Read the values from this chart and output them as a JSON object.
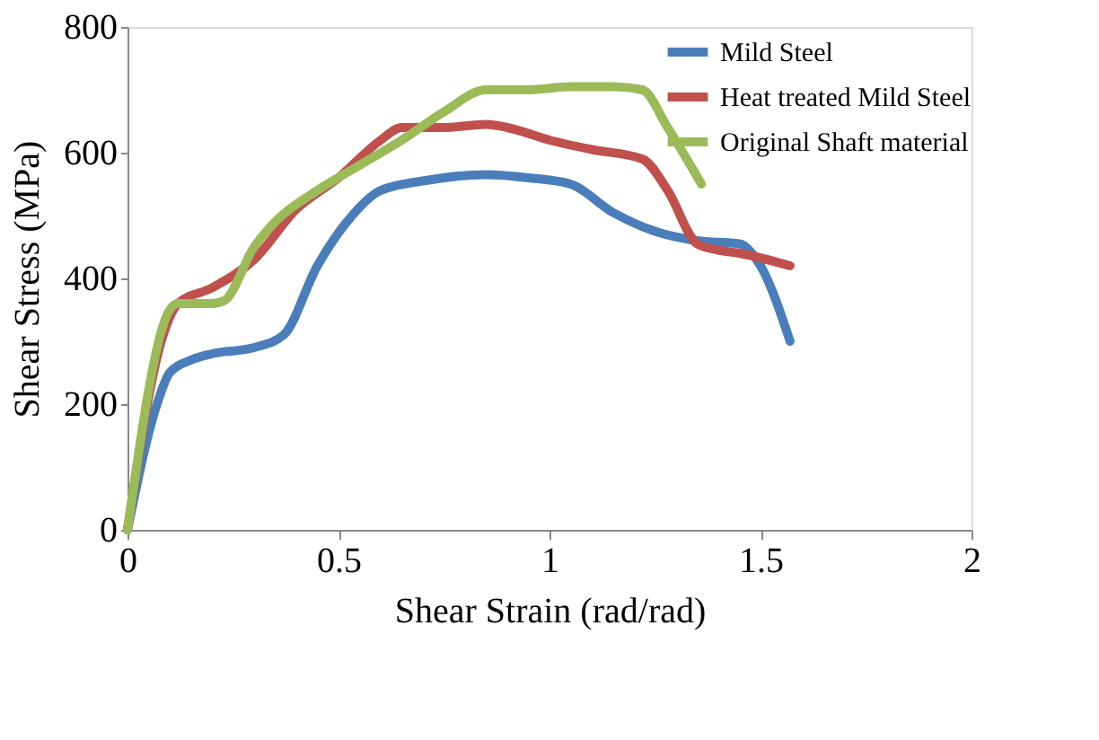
{
  "chart_data": {
    "type": "line",
    "xlabel": "Shear Strain (rad/rad)",
    "ylabel": "Shear Stress (MPa)",
    "xlim": [
      0,
      2
    ],
    "xticks": [
      0,
      {
        "value": 0.5,
        "label": "0.5"
      },
      1,
      {
        "value": 1.5,
        "label": "1.5"
      },
      2
    ],
    "ylim": [
      0,
      800
    ],
    "yticks": [
      0,
      200,
      400,
      600,
      800
    ],
    "grid": false,
    "legend": "top right",
    "marker": "none",
    "line_style": "solid",
    "series": [
      {
        "name": "Mild Steel",
        "color": "#4a7ebb",
        "x": [
          0,
          0.07,
          0.1,
          0.15,
          0.2,
          0.3,
          0.37,
          0.45,
          0.52,
          0.6,
          0.7,
          0.85,
          0.95,
          1.05,
          1.15,
          1.25,
          1.35,
          1.45,
          1.5,
          1.57
        ],
        "values": [
          0,
          200,
          250,
          270,
          280,
          290,
          310,
          420,
          490,
          540,
          555,
          565,
          560,
          550,
          505,
          475,
          460,
          455,
          420,
          300
        ]
      },
      {
        "name": "Heat treated Mild Steel",
        "color": "#c0504d",
        "x": [
          0,
          0.08,
          0.12,
          0.2,
          0.3,
          0.4,
          0.5,
          0.6,
          0.65,
          0.75,
          0.85,
          0.9,
          1.0,
          1.1,
          1.22,
          1.28,
          1.35,
          1.4,
          1.45,
          1.57
        ],
        "values": [
          0,
          300,
          360,
          385,
          430,
          510,
          560,
          620,
          640,
          640,
          645,
          640,
          620,
          605,
          590,
          540,
          455,
          445,
          440,
          420
        ]
      },
      {
        "name": "Original Shaft material",
        "color": "#9bbb59",
        "x": [
          0,
          0.1,
          0.12,
          0.2,
          0.23,
          0.3,
          0.35,
          0.45,
          0.55,
          0.65,
          0.75,
          0.85,
          0.95,
          1.05,
          1.15,
          1.22,
          1.28,
          1.36
        ],
        "values": [
          0,
          350,
          360,
          360,
          365,
          450,
          490,
          540,
          580,
          620,
          665,
          700,
          700,
          705,
          705,
          700,
          640,
          550
        ]
      }
    ]
  }
}
